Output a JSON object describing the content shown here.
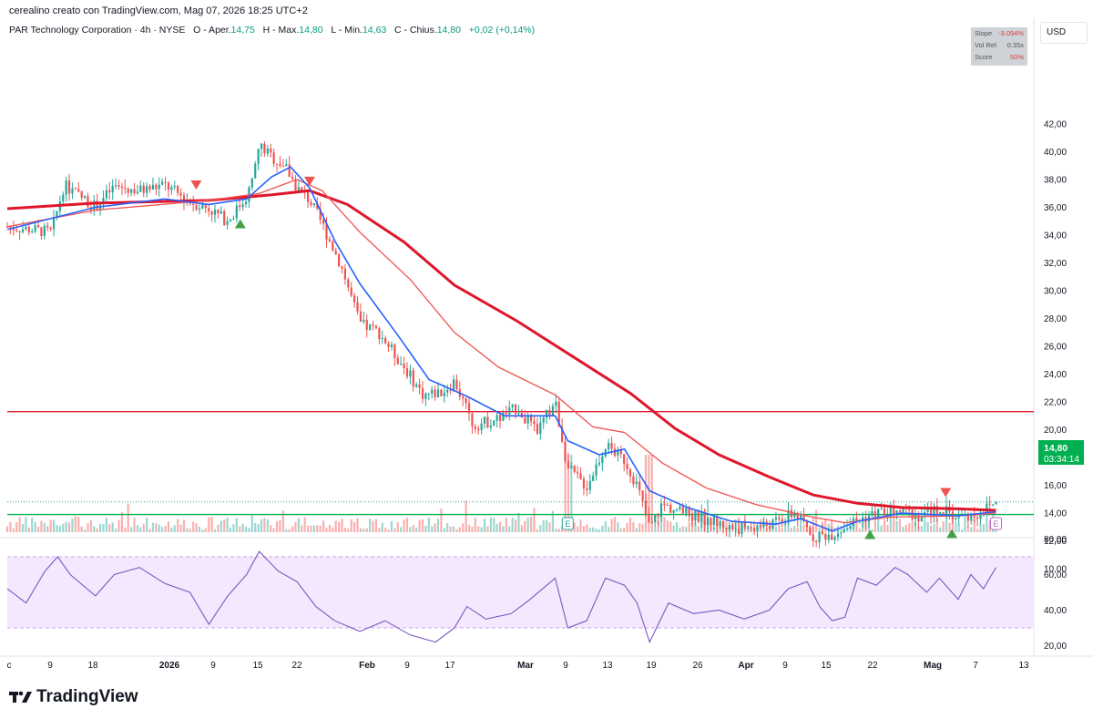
{
  "caption": "cerealino creato con TradingView.com, Mag 07, 2026 18:25 UTC+2",
  "legend": {
    "title": "PAR Technology Corporation · 4h · NYSE",
    "o_label": "O - Aper.",
    "o_val": "14,75",
    "h_label": "H - Max.",
    "h_val": "14,80",
    "l_label": "L - Min.",
    "l_val": "14,63",
    "c_label": "C - Chius.",
    "c_val": "14,80",
    "chg": "+0,02 (+0,14%)"
  },
  "infobox": {
    "slope_label": "Slope",
    "slope_val": "-3.094%",
    "volrel_label": "Vol Rel",
    "volrel_val": "0.35x",
    "score_label": "Score",
    "score_val": "50%"
  },
  "currency": "USD",
  "price_tag": {
    "price": "14,80",
    "countdown": "03:34:14"
  },
  "brand": "TradingView",
  "colors": {
    "up": "#26a69a",
    "down": "#ef5350",
    "ema_fast": "#2962ff",
    "ema_mid": "#f05a5a",
    "ema_slow": "#e0162b",
    "rsi": "#7e57c2",
    "resistance": "#e0162b",
    "support": "#00b050"
  },
  "chart_data": [
    {
      "type": "candlestick",
      "title": "PAR Technology Corporation · 4h · NYSE",
      "y_axis_ticks": [
        "42,00",
        "40,00",
        "38,00",
        "36,00",
        "34,00",
        "32,00",
        "30,00",
        "28,00",
        "26,00",
        "24,00",
        "22,00",
        "20,00",
        "18,00",
        "16,00",
        "14,00",
        "12,00",
        "10,00"
      ],
      "ylim": [
        9,
        43
      ],
      "x_ticks": [
        "c",
        "9",
        "18",
        "2026",
        "9",
        "15",
        "22",
        "Feb",
        "9",
        "17",
        "Mar",
        "9",
        "13",
        "19",
        "26",
        "Apr",
        "9",
        "15",
        "22",
        "Mag",
        "7",
        "13"
      ],
      "x_range_dates": [
        "2025-12-01",
        "2026-05-13"
      ],
      "close_path": [
        [
          "2025-12-01",
          34.6
        ],
        [
          "2025-12-05",
          34.4
        ],
        [
          "2025-12-08",
          34.2
        ],
        [
          "2025-12-10",
          37.6
        ],
        [
          "2025-12-15",
          36.0
        ],
        [
          "2025-12-18",
          37.5
        ],
        [
          "2025-12-22",
          37.2
        ],
        [
          "2025-12-26",
          37.6
        ],
        [
          "2025-12-30",
          36.4
        ],
        [
          "2026-01-02",
          35.9
        ],
        [
          "2026-01-05",
          35.0
        ],
        [
          "2026-01-08",
          36.8
        ],
        [
          "2026-01-09",
          38.0
        ],
        [
          "2026-01-10",
          40.5
        ],
        [
          "2026-01-12",
          39.6
        ],
        [
          "2026-01-14",
          39.0
        ],
        [
          "2026-01-16",
          37.4
        ],
        [
          "2026-01-18",
          36.5
        ],
        [
          "2026-01-20",
          34.8
        ],
        [
          "2026-01-23",
          31.8
        ],
        [
          "2026-01-26",
          27.6
        ],
        [
          "2026-01-29",
          27.0
        ],
        [
          "2026-02-02",
          24.5
        ],
        [
          "2026-02-05",
          22.5
        ],
        [
          "2026-02-08",
          22.7
        ],
        [
          "2026-02-10",
          23.5
        ],
        [
          "2026-02-13",
          20.3
        ],
        [
          "2026-02-17",
          20.8
        ],
        [
          "2026-02-20",
          21.6
        ],
        [
          "2026-02-23",
          19.8
        ],
        [
          "2026-02-26",
          22.0
        ],
        [
          "2026-02-28",
          17.2
        ],
        [
          "2026-03-03",
          15.9
        ],
        [
          "2026-03-06",
          18.9
        ],
        [
          "2026-03-09",
          17.8
        ],
        [
          "2026-03-11",
          16.0
        ],
        [
          "2026-03-13",
          12.9
        ],
        [
          "2026-03-15",
          14.6
        ],
        [
          "2026-03-19",
          13.9
        ],
        [
          "2026-03-23",
          13.4
        ],
        [
          "2026-03-26",
          12.9
        ],
        [
          "2026-03-30",
          13.0
        ],
        [
          "2026-04-02",
          13.3
        ],
        [
          "2026-04-05",
          14.0
        ],
        [
          "2026-04-08",
          12.3
        ],
        [
          "2026-04-11",
          12.5
        ],
        [
          "2026-04-15",
          13.5
        ],
        [
          "2026-04-18",
          14.0
        ],
        [
          "2026-04-22",
          14.1
        ],
        [
          "2026-04-25",
          13.8
        ],
        [
          "2026-04-28",
          14.3
        ],
        [
          "2026-05-01",
          13.7
        ],
        [
          "2026-05-04",
          13.9
        ],
        [
          "2026-05-07",
          14.8
        ]
      ],
      "ema_fast": [
        [
          "2025-12-01",
          34.4
        ],
        [
          "2025-12-15",
          36.0
        ],
        [
          "2025-12-26",
          36.6
        ],
        [
          "2026-01-02",
          36.2
        ],
        [
          "2026-01-08",
          36.6
        ],
        [
          "2026-01-12",
          38.2
        ],
        [
          "2026-01-15",
          38.9
        ],
        [
          "2026-01-18",
          37.4
        ],
        [
          "2026-01-22",
          33.6
        ],
        [
          "2026-01-26",
          30.5
        ],
        [
          "2026-02-01",
          26.8
        ],
        [
          "2026-02-06",
          23.6
        ],
        [
          "2026-02-12",
          22.4
        ],
        [
          "2026-02-18",
          21.0
        ],
        [
          "2026-02-26",
          21.0
        ],
        [
          "2026-02-28",
          19.2
        ],
        [
          "2026-03-05",
          18.2
        ],
        [
          "2026-03-09",
          18.6
        ],
        [
          "2026-03-13",
          15.6
        ],
        [
          "2026-03-19",
          14.4
        ],
        [
          "2026-03-26",
          13.4
        ],
        [
          "2026-04-02",
          13.2
        ],
        [
          "2026-04-06",
          13.6
        ],
        [
          "2026-04-11",
          12.7
        ],
        [
          "2026-04-15",
          13.4
        ],
        [
          "2026-04-22",
          14.0
        ],
        [
          "2026-05-01",
          13.8
        ],
        [
          "2026-05-07",
          14.1
        ]
      ],
      "ema_mid": [
        [
          "2025-12-01",
          34.6
        ],
        [
          "2025-12-15",
          35.8
        ],
        [
          "2026-01-02",
          36.5
        ],
        [
          "2026-01-10",
          37.0
        ],
        [
          "2026-01-16",
          38.0
        ],
        [
          "2026-01-20",
          37.2
        ],
        [
          "2026-01-26",
          34.2
        ],
        [
          "2026-02-03",
          30.8
        ],
        [
          "2026-02-10",
          27.0
        ],
        [
          "2026-02-17",
          24.5
        ],
        [
          "2026-02-26",
          22.5
        ],
        [
          "2026-03-04",
          20.2
        ],
        [
          "2026-03-09",
          19.8
        ],
        [
          "2026-03-15",
          17.6
        ],
        [
          "2026-03-22",
          15.8
        ],
        [
          "2026-03-30",
          14.6
        ],
        [
          "2026-04-08",
          13.7
        ],
        [
          "2026-04-13",
          13.3
        ],
        [
          "2026-04-20",
          13.7
        ],
        [
          "2026-05-01",
          13.8
        ],
        [
          "2026-05-07",
          14.0
        ]
      ],
      "ema_slow": [
        [
          "2025-12-01",
          35.9
        ],
        [
          "2025-12-15",
          36.3
        ],
        [
          "2026-01-02",
          36.5
        ],
        [
          "2026-01-12",
          36.9
        ],
        [
          "2026-01-18",
          37.2
        ],
        [
          "2026-01-24",
          36.2
        ],
        [
          "2026-02-02",
          33.5
        ],
        [
          "2026-02-10",
          30.4
        ],
        [
          "2026-02-20",
          27.8
        ],
        [
          "2026-03-01",
          25.2
        ],
        [
          "2026-03-10",
          22.6
        ],
        [
          "2026-03-17",
          20.1
        ],
        [
          "2026-03-24",
          18.2
        ],
        [
          "2026-04-01",
          16.6
        ],
        [
          "2026-04-08",
          15.3
        ],
        [
          "2026-04-15",
          14.7
        ],
        [
          "2026-04-22",
          14.4
        ],
        [
          "2026-05-01",
          14.3
        ],
        [
          "2026-05-07",
          14.2
        ]
      ],
      "horizontal_lines": [
        {
          "name": "resistance",
          "y": 21.3
        },
        {
          "name": "support",
          "y": 13.9
        }
      ],
      "current_price_line": 14.8,
      "buy_signals": [
        "2026-01-07",
        "2026-04-17",
        "2026-04-30"
      ],
      "sell_signals": [
        "2025-12-31",
        "2026-01-18",
        "2026-04-29"
      ],
      "earnings_markers": [
        "2026-02-28",
        "2026-05-07"
      ],
      "volume_spikes": [
        "2026-02-28",
        "2026-03-13"
      ]
    },
    {
      "type": "line",
      "ylim": [
        15,
        82
      ],
      "y_axis_ticks": [
        "80,00",
        "60,00",
        "40,00",
        "20,00"
      ],
      "band": [
        30,
        70
      ],
      "rsi_path": [
        [
          "2025-12-01",
          52
        ],
        [
          "2025-12-04",
          44
        ],
        [
          "2025-12-07",
          62
        ],
        [
          "2025-12-09",
          70
        ],
        [
          "2025-12-11",
          60
        ],
        [
          "2025-12-15",
          48
        ],
        [
          "2025-12-18",
          60
        ],
        [
          "2025-12-22",
          64
        ],
        [
          "2025-12-26",
          55
        ],
        [
          "2025-12-30",
          50
        ],
        [
          "2026-01-02",
          32
        ],
        [
          "2026-01-05",
          48
        ],
        [
          "2026-01-08",
          60
        ],
        [
          "2026-01-10",
          73
        ],
        [
          "2026-01-13",
          62
        ],
        [
          "2026-01-16",
          56
        ],
        [
          "2026-01-19",
          42
        ],
        [
          "2026-01-22",
          34
        ],
        [
          "2026-01-26",
          28
        ],
        [
          "2026-01-30",
          34
        ],
        [
          "2026-02-03",
          26
        ],
        [
          "2026-02-07",
          22
        ],
        [
          "2026-02-10",
          30
        ],
        [
          "2026-02-12",
          42
        ],
        [
          "2026-02-15",
          35
        ],
        [
          "2026-02-19",
          38
        ],
        [
          "2026-02-22",
          46
        ],
        [
          "2026-02-26",
          58
        ],
        [
          "2026-02-28",
          30
        ],
        [
          "2026-03-03",
          34
        ],
        [
          "2026-03-06",
          58
        ],
        [
          "2026-03-09",
          54
        ],
        [
          "2026-03-11",
          44
        ],
        [
          "2026-03-13",
          22
        ],
        [
          "2026-03-16",
          44
        ],
        [
          "2026-03-20",
          38
        ],
        [
          "2026-03-24",
          40
        ],
        [
          "2026-03-28",
          35
        ],
        [
          "2026-04-01",
          40
        ],
        [
          "2026-04-04",
          52
        ],
        [
          "2026-04-07",
          56
        ],
        [
          "2026-04-09",
          42
        ],
        [
          "2026-04-11",
          34
        ],
        [
          "2026-04-13",
          36
        ],
        [
          "2026-04-15",
          58
        ],
        [
          "2026-04-18",
          54
        ],
        [
          "2026-04-21",
          64
        ],
        [
          "2026-04-23",
          60
        ],
        [
          "2026-04-26",
          50
        ],
        [
          "2026-04-28",
          58
        ],
        [
          "2026-05-01",
          46
        ],
        [
          "2026-05-03",
          60
        ],
        [
          "2026-05-05",
          52
        ],
        [
          "2026-05-07",
          64
        ]
      ]
    }
  ]
}
